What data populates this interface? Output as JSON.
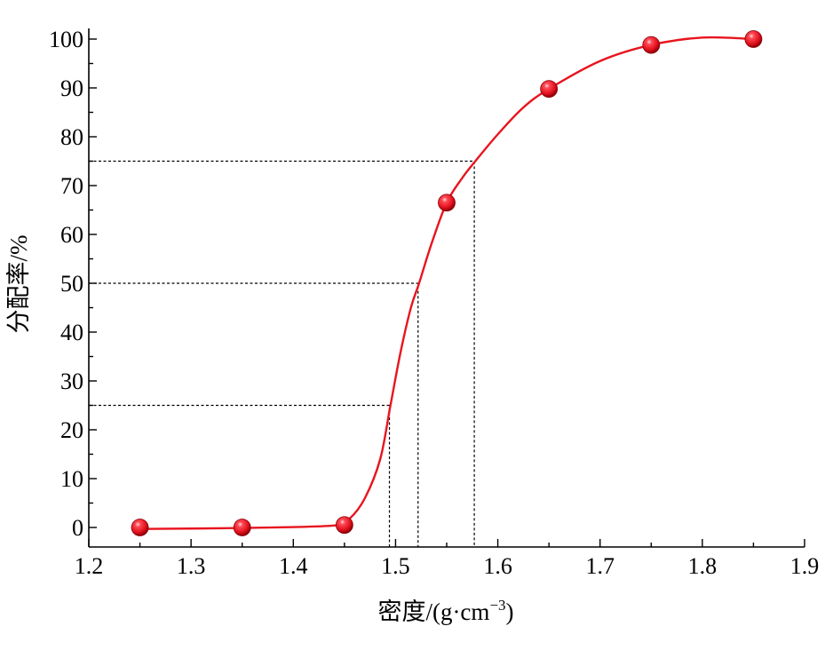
{
  "chart_data": {
    "type": "scatter",
    "title": "",
    "xlabel": "密度/(g·cm",
    "xlabel_superscript": "−3",
    "xlabel_suffix": ")",
    "ylabel": "分配率/%",
    "xlim": [
      1.2,
      1.9
    ],
    "ylim": [
      -4,
      105
    ],
    "x_ticks": [
      1.2,
      1.3,
      1.4,
      1.5,
      1.6,
      1.7,
      1.8,
      1.9
    ],
    "x_tick_labels": [
      "1.2",
      "1.3",
      "1.4",
      "1.5",
      "1.6",
      "1.7",
      "1.8",
      "1.9"
    ],
    "y_ticks": [
      0,
      10,
      20,
      30,
      40,
      50,
      60,
      70,
      80,
      90,
      100
    ],
    "y_tick_labels": [
      "0",
      "10",
      "20",
      "30",
      "40",
      "50",
      "60",
      "70",
      "80",
      "90",
      "100"
    ],
    "grid": false,
    "legend": "none",
    "series": [
      {
        "marker": "sphere",
        "color": "#e8141e",
        "x": [
          1.25,
          1.35,
          1.45,
          1.55,
          1.65,
          1.75,
          1.85
        ],
        "y": [
          0,
          0,
          0.5,
          66.5,
          89.8,
          98.8,
          100
        ]
      }
    ],
    "fitted_curve": {
      "color": "#e8141e",
      "x": [
        1.25,
        1.35,
        1.44,
        1.455,
        1.47,
        1.485,
        1.495,
        1.505,
        1.515,
        1.523,
        1.535,
        1.55,
        1.565,
        1.578,
        1.6,
        1.625,
        1.65,
        1.7,
        1.75,
        1.8,
        1.85
      ],
      "y": [
        -0.3,
        -0.1,
        0.4,
        1.8,
        6,
        14,
        25,
        36,
        45,
        50,
        58,
        66.5,
        71.5,
        75,
        80.5,
        86,
        89.8,
        95.5,
        98.8,
        100.3,
        100
      ]
    },
    "guide_lines": [
      {
        "x": 1.494,
        "y": 25
      },
      {
        "x": 1.522,
        "y": 50
      },
      {
        "x": 1.577,
        "y": 75
      }
    ]
  }
}
